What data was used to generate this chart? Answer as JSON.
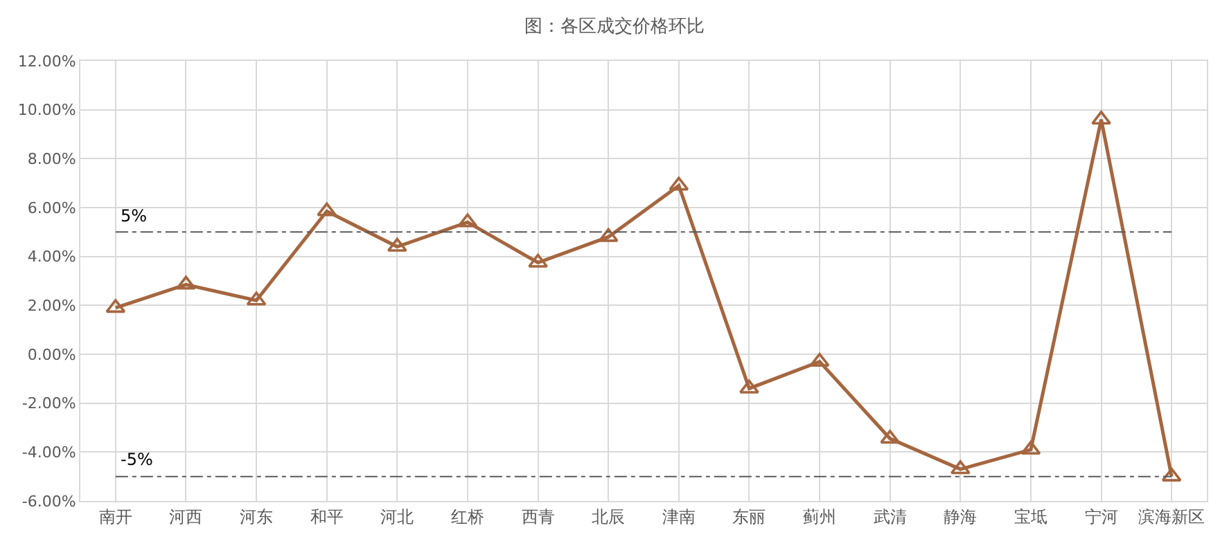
{
  "chart_data": {
    "type": "line",
    "title": "图：各区成交价格环比",
    "categories": [
      "南开",
      "河西",
      "河东",
      "和平",
      "河北",
      "红桥",
      "西青",
      "北辰",
      "津南",
      "东丽",
      "蓟州",
      "武清",
      "静海",
      "宝坻",
      "宁河",
      "滨海新区"
    ],
    "series": [
      {
        "color": "#a5663f",
        "values": [
          1.9,
          2.85,
          2.2,
          5.85,
          4.4,
          5.4,
          3.75,
          4.8,
          6.9,
          -1.4,
          -0.3,
          -3.45,
          -4.7,
          -3.9,
          9.6,
          -5.0
        ]
      }
    ],
    "ylim": [
      -6,
      12
    ],
    "yticks": [
      {
        "value": -6,
        "label": "-6.00%"
      },
      {
        "value": -4,
        "label": "-4.00%"
      },
      {
        "value": -2,
        "label": "-2.00%"
      },
      {
        "value": 0,
        "label": "0.00%"
      },
      {
        "value": 2,
        "label": "2.00%"
      },
      {
        "value": 4,
        "label": "4.00%"
      },
      {
        "value": 6,
        "label": "6.00%"
      },
      {
        "value": 8,
        "label": "8.00%"
      },
      {
        "value": 10,
        "label": "10.00%"
      },
      {
        "value": 12,
        "label": "12.00%"
      }
    ],
    "ref_lines": [
      {
        "axis": "y",
        "value": 5,
        "label": "5%",
        "color": "#595959",
        "line_style": "dashdot"
      },
      {
        "axis": "y",
        "value": -5,
        "label": "-5%",
        "color": "#595959",
        "line_style": "dashdot"
      }
    ],
    "grid": true,
    "marker": "triangle",
    "line_style": "solid"
  }
}
